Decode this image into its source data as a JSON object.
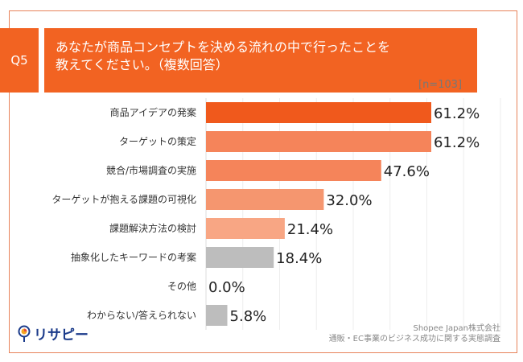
{
  "header": {
    "q_label": "Q5",
    "title_line1": "あなたが商品コンセプトを決める流れの中で行ったことを",
    "title_line2": "教えてください。（複数回答）"
  },
  "chart_data": {
    "type": "bar",
    "orientation": "horizontal",
    "note": "[n=103]",
    "categories": [
      "商品アイデアの発案",
      "ターゲットの策定",
      "競合/市場調査の実施",
      "ターゲットが抱える課題の可視化",
      "課題解決方法の検討",
      "抽象化したキーワードの考案",
      "その他",
      "わからない/答えられない"
    ],
    "values": [
      61.2,
      61.2,
      47.6,
      32.0,
      21.4,
      18.4,
      0.0,
      5.8
    ],
    "value_labels": [
      "61.2%",
      "61.2%",
      "47.6%",
      "32.0%",
      "21.4%",
      "18.4%",
      "0.0%",
      "5.8%"
    ],
    "colors": [
      "#f0591c",
      "#f5845a",
      "#f5845a",
      "#f5966f",
      "#f8a684",
      "#bdbdbd",
      "#bdbdbd",
      "#bdbdbd"
    ],
    "xlim": [
      0,
      100
    ],
    "grid": true
  },
  "footer": {
    "logo_text": "リサピー",
    "source_line1": "Shopee Japan株式会社",
    "source_line2": "通販・EC事業のビジネス成功に関する実態調査"
  }
}
